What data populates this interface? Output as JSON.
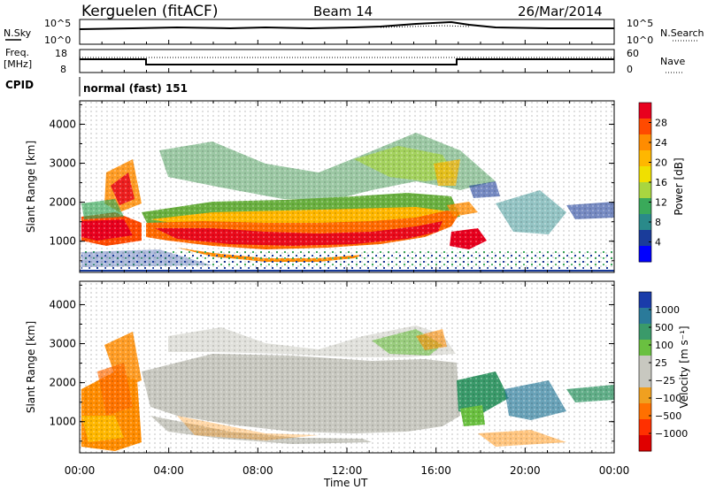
{
  "header": {
    "station": "Kerguelen (fitACF)",
    "beam": "Beam 14",
    "date": "26/Mar/2014"
  },
  "nsky_panel": {
    "left_label": "N.Sky",
    "left_ticks": [
      "10^5",
      "10^0"
    ],
    "right_ticks": [
      "10^5",
      "10^0"
    ],
    "right_label": "N.Search"
  },
  "freq_panel": {
    "label_line1": "Freq.",
    "label_line2": "[MHz]",
    "left_ticks": [
      "18",
      "8"
    ],
    "right_ticks": [
      "60",
      "0"
    ],
    "right_label": "Nave"
  },
  "cpid": {
    "label": "CPID",
    "mode": "normal (fast) 151"
  },
  "chart_data": [
    {
      "type": "heatmap",
      "name": "power",
      "ylabel": "Slant Range [km]",
      "yticks": [
        "1000",
        "2000",
        "3000",
        "4000"
      ],
      "ylim": [
        200,
        4600
      ],
      "colorbar": {
        "label": "Power [dB]",
        "ticks": [
          "28",
          "24",
          "20",
          "16",
          "12",
          "8",
          "4"
        ],
        "colors": [
          "#e8001e",
          "#ff4a00",
          "#ff8c00",
          "#ffb700",
          "#f0e000",
          "#a8d640",
          "#3aaa5a",
          "#2a8a8a",
          "#1a3c9a",
          "#0000ff"
        ]
      }
    },
    {
      "type": "heatmap",
      "name": "velocity",
      "ylabel": "Slant Range [km]",
      "yticks": [
        "1000",
        "2000",
        "3000",
        "4000"
      ],
      "ylim": [
        200,
        4600
      ],
      "xlabel": "Time UT",
      "xticks": [
        "00:00",
        "04:00",
        "08:00",
        "12:00",
        "16:00",
        "20:00",
        "00:00"
      ],
      "colorbar": {
        "label": "Velocity [m s⁻¹]",
        "ticks": [
          "1000",
          "500",
          "100",
          "25",
          "−25",
          "−100",
          "−500",
          "−1000"
        ],
        "colors": [
          "#1a3caa",
          "#2a7a9a",
          "#3a9a6a",
          "#6ac040",
          "#c8c8c0",
          "#c8c8c0",
          "#f0a020",
          "#ff7000",
          "#ff3000",
          "#e00000"
        ]
      }
    }
  ]
}
